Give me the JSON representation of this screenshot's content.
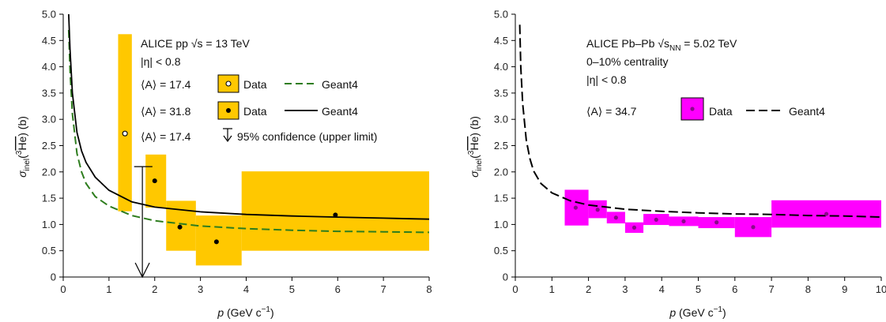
{
  "chart_data": [
    {
      "type": "scatter",
      "xlabel_main": "p",
      "xlabel_unit": "(GeV c",
      "xlabel_unit_sup": "−1",
      "xlabel_close": ")",
      "ylabel_sigma": "σ",
      "ylabel_sub": "inel",
      "ylabel_open": "(",
      "ylabel_sup": "3",
      "ylabel_species": "He",
      "ylabel_close": ") (b)",
      "xlim": [
        0,
        8
      ],
      "ylim": [
        0,
        5
      ],
      "xticks": [
        "0",
        "1",
        "2",
        "3",
        "4",
        "5",
        "6",
        "7",
        "8"
      ],
      "yticks": [
        "0",
        "0.5",
        "1.0",
        "1.5",
        "2.0",
        "2.5",
        "3.0",
        "3.5",
        "4.0",
        "4.5",
        "5.0"
      ],
      "color_box": "#ffc800",
      "annotation": {
        "line1": "ALICE pp √s = 13 TeV",
        "line2": "|η| < 0.8",
        "legend": [
          {
            "label_A": "⟨A⟩ = 17.4",
            "marker": "open-circle",
            "text": "Data",
            "model_text": "Geant4",
            "line_style": "dashed",
            "color": "#2e7d1e"
          },
          {
            "label_A": "⟨A⟩ = 31.8",
            "marker": "filled-circle",
            "text": "Data",
            "model_text": "Geant4",
            "line_style": "solid",
            "color": "#000000"
          },
          {
            "label_A": "⟨A⟩ = 17.4",
            "marker": "arrow",
            "text": "95% confidence (upper limit)"
          }
        ]
      },
      "open_points": [
        {
          "x": 1.35,
          "y": 2.73,
          "xlo": 1.2,
          "xhi": 1.5,
          "ylo": 1.25,
          "yhi": 4.62
        }
      ],
      "filled_points": [
        {
          "x": 2.0,
          "y": 1.83,
          "xlo": 1.8,
          "xhi": 2.25,
          "ylo": 1.32,
          "yhi": 2.33
        },
        {
          "x": 2.55,
          "y": 0.95,
          "xlo": 2.25,
          "xhi": 2.9,
          "ylo": 0.5,
          "yhi": 1.45
        },
        {
          "x": 3.35,
          "y": 0.67,
          "xlo": 2.9,
          "xhi": 3.9,
          "ylo": 0.22,
          "yhi": 1.17
        },
        {
          "x": 5.95,
          "y": 1.18,
          "xlo": 3.9,
          "xhi": 8.0,
          "ylo": 0.5,
          "yhi": 2.01
        }
      ],
      "upper_limit": {
        "x": 1.73,
        "y": 2.1,
        "xlo": 1.55,
        "xhi": 1.95
      },
      "geant4_solid": {
        "x": [
          0.12,
          0.15,
          0.2,
          0.3,
          0.4,
          0.5,
          0.7,
          1.0,
          1.5,
          2.0,
          3.0,
          4.0,
          5.0,
          6.0,
          7.0,
          8.0
        ],
        "y": [
          5.0,
          4.3,
          3.5,
          2.75,
          2.4,
          2.18,
          1.9,
          1.65,
          1.43,
          1.33,
          1.24,
          1.19,
          1.16,
          1.14,
          1.12,
          1.1
        ]
      },
      "geant4_dashed": {
        "x": [
          0.12,
          0.15,
          0.2,
          0.3,
          0.4,
          0.5,
          0.7,
          1.0,
          1.5,
          2.0,
          3.0,
          4.0,
          5.0,
          6.0,
          7.0,
          8.0
        ],
        "y": [
          4.7,
          3.9,
          3.1,
          2.35,
          2.0,
          1.78,
          1.53,
          1.35,
          1.17,
          1.07,
          0.97,
          0.92,
          0.89,
          0.87,
          0.86,
          0.85
        ]
      }
    },
    {
      "type": "scatter",
      "xlabel_main": "p",
      "xlabel_unit": "(GeV c",
      "xlabel_unit_sup": "−1",
      "xlabel_close": ")",
      "ylabel_sigma": "σ",
      "ylabel_sub": "inel",
      "ylabel_open": "(",
      "ylabel_sup": "3",
      "ylabel_species": "He",
      "ylabel_close": ") (b)",
      "xlim": [
        0,
        10
      ],
      "ylim": [
        0,
        5
      ],
      "xticks": [
        "0",
        "1",
        "2",
        "3",
        "4",
        "5",
        "6",
        "7",
        "8",
        "9",
        "10"
      ],
      "yticks": [
        "0",
        "0.5",
        "1.0",
        "1.5",
        "2.0",
        "2.5",
        "3.0",
        "3.5",
        "4.0",
        "4.5",
        "5.0"
      ],
      "color_box": "#ff00ff",
      "annotation": {
        "line1_a": "ALICE Pb–Pb ",
        "line1_root": "√s",
        "line1_sub": "NN",
        "line1_b": " = 5.02 TeV",
        "line2": "0–10% centrality",
        "line3": "|η| < 0.8",
        "label_A": "⟨A⟩ = 34.7",
        "data_text": "Data",
        "model_text": "Geant4"
      },
      "points": [
        {
          "x": 1.65,
          "y": 1.32,
          "xlo": 1.35,
          "xhi": 2.0,
          "ylo": 0.98,
          "yhi": 1.66
        },
        {
          "x": 2.25,
          "y": 1.28,
          "xlo": 2.0,
          "xhi": 2.5,
          "ylo": 1.12,
          "yhi": 1.46
        },
        {
          "x": 2.75,
          "y": 1.13,
          "xlo": 2.5,
          "xhi": 3.0,
          "ylo": 1.02,
          "yhi": 1.24
        },
        {
          "x": 3.25,
          "y": 0.94,
          "xlo": 3.0,
          "xhi": 3.5,
          "ylo": 0.84,
          "yhi": 1.04
        },
        {
          "x": 3.85,
          "y": 1.09,
          "xlo": 3.5,
          "xhi": 4.2,
          "ylo": 0.99,
          "yhi": 1.2
        },
        {
          "x": 4.6,
          "y": 1.06,
          "xlo": 4.2,
          "xhi": 5.0,
          "ylo": 0.97,
          "yhi": 1.15
        },
        {
          "x": 5.5,
          "y": 1.04,
          "xlo": 5.0,
          "xhi": 6.0,
          "ylo": 0.93,
          "yhi": 1.14
        },
        {
          "x": 6.5,
          "y": 0.95,
          "xlo": 6.0,
          "xhi": 7.0,
          "ylo": 0.76,
          "yhi": 1.14
        },
        {
          "x": 8.5,
          "y": 1.2,
          "xlo": 7.0,
          "xhi": 10.0,
          "ylo": 0.94,
          "yhi": 1.46
        }
      ],
      "geant4_dashed": {
        "x": [
          0.12,
          0.15,
          0.2,
          0.3,
          0.4,
          0.5,
          0.7,
          1.0,
          1.5,
          2.0,
          3.0,
          4.0,
          5.0,
          6.0,
          7.0,
          8.0,
          9.0,
          10.0
        ],
        "y": [
          4.8,
          4.0,
          3.3,
          2.6,
          2.25,
          2.02,
          1.78,
          1.6,
          1.45,
          1.37,
          1.29,
          1.25,
          1.22,
          1.2,
          1.19,
          1.17,
          1.16,
          1.14
        ]
      }
    }
  ]
}
